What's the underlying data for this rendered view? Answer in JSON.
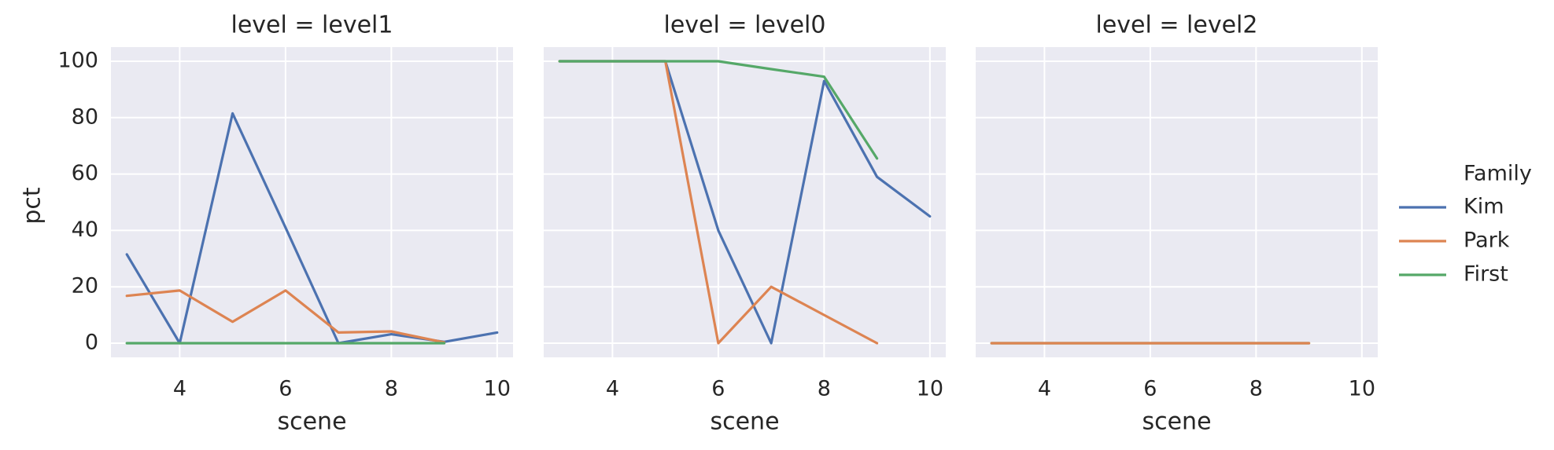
{
  "chart_data": {
    "type": "line",
    "facet_variable": "level",
    "x_label": "scene",
    "y_label": "pct",
    "xlim": [
      2.7,
      10.3
    ],
    "ylim": [
      -5,
      105
    ],
    "x_ticks": [
      4,
      6,
      8,
      10
    ],
    "y_ticks": [
      0,
      20,
      40,
      60,
      80,
      100
    ],
    "grid": true,
    "legend": {
      "title": "Family",
      "placement": "right",
      "entries": [
        "Kim",
        "Park",
        "First"
      ]
    },
    "colors": {
      "Kim": "#4c72b0",
      "Park": "#dd8452",
      "First": "#55a868",
      "panel_background": "#eaeaf2",
      "grid": "#ffffff"
    },
    "panels": [
      {
        "title": "level = level1",
        "series": [
          {
            "name": "Kim",
            "x": [
              3,
              4,
              5,
              6,
              7,
              8,
              9,
              10
            ],
            "y": [
              31.5,
              0,
              81.5,
              41,
              0,
              3.2,
              0.5,
              3.8
            ]
          },
          {
            "name": "Park",
            "x": [
              3,
              4,
              5,
              6,
              7,
              8,
              9
            ],
            "y": [
              16.8,
              18.7,
              7.6,
              18.7,
              3.8,
              4.2,
              0.3
            ]
          },
          {
            "name": "First",
            "x": [
              3,
              4,
              5,
              6,
              7,
              8,
              9
            ],
            "y": [
              0,
              0,
              0,
              0,
              0,
              0,
              0
            ]
          }
        ]
      },
      {
        "title": "level = level0",
        "series": [
          {
            "name": "Kim",
            "x": [
              3,
              4,
              5,
              6,
              7,
              8,
              9,
              10
            ],
            "y": [
              100,
              100,
              100,
              40,
              0,
              93,
              59,
              45
            ]
          },
          {
            "name": "Park",
            "x": [
              3,
              4,
              5,
              6,
              7,
              8,
              9
            ],
            "y": [
              100,
              100,
              100,
              0,
              20,
              10,
              0
            ]
          },
          {
            "name": "First",
            "x": [
              3,
              4,
              5,
              6,
              7,
              8,
              9
            ],
            "y": [
              100,
              100,
              100,
              100,
              97.2,
              94.5,
              65.5
            ]
          }
        ]
      },
      {
        "title": "level = level2",
        "series": [
          {
            "name": "First",
            "x": [
              3,
              4,
              5,
              6,
              7,
              8,
              9
            ],
            "y": [
              0,
              0,
              0,
              0,
              0,
              0,
              0
            ]
          },
          {
            "name": "Park",
            "x": [
              3,
              4,
              5,
              6,
              7,
              8,
              9
            ],
            "y": [
              0,
              0,
              0,
              0,
              0,
              0,
              0
            ]
          }
        ]
      }
    ]
  }
}
